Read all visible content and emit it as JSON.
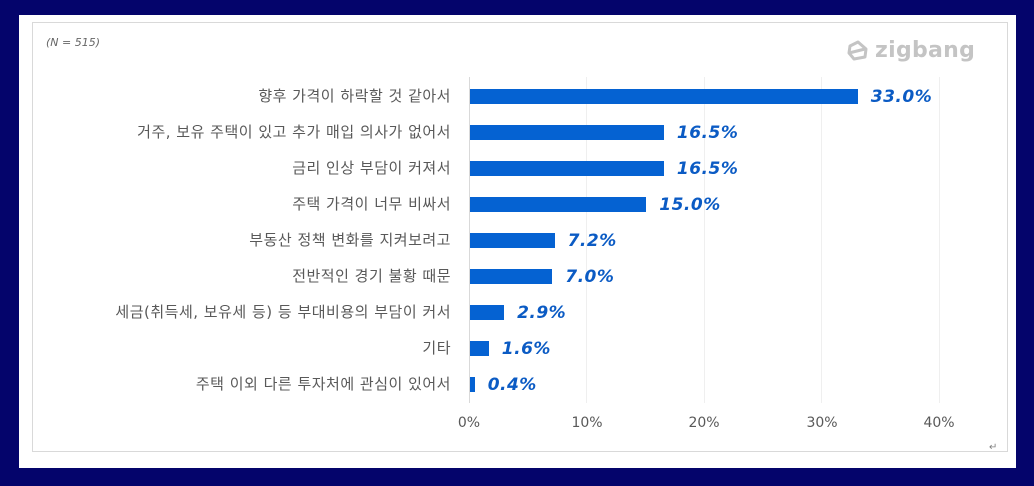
{
  "note": "(N = 515)",
  "brand": {
    "name": "zigbang",
    "color": "#c4c4c4"
  },
  "colors": {
    "bar": "#0562d2",
    "value_label": "#0b5bc4",
    "background_border": "#04046b"
  },
  "axis": {
    "ticks": [
      "0%",
      "10%",
      "20%",
      "30%",
      "40%"
    ]
  },
  "rows": [
    {
      "label": "향후 가격이 하락할 것 같아서",
      "value": 33.0,
      "display": "33.0%"
    },
    {
      "label": "거주, 보유 주택이 있고 추가 매입 의사가 없어서",
      "value": 16.5,
      "display": "16.5%"
    },
    {
      "label": "금리 인상 부담이 커져서",
      "value": 16.5,
      "display": "16.5%"
    },
    {
      "label": "주택 가격이 너무 비싸서",
      "value": 15.0,
      "display": "15.0%"
    },
    {
      "label": "부동산 정책 변화를 지켜보려고",
      "value": 7.2,
      "display": "7.2%"
    },
    {
      "label": "전반적인 경기 불황 때문",
      "value": 7.0,
      "display": "7.0%"
    },
    {
      "label": "세금(취득세, 보유세 등) 등 부대비용의 부담이 커서",
      "value": 2.9,
      "display": "2.9%"
    },
    {
      "label": "기타",
      "value": 1.6,
      "display": "1.6%"
    },
    {
      "label": "주택 이외 다른 투자처에 관심이 있어서",
      "value": 0.4,
      "display": "0.4%"
    }
  ],
  "return_mark": "↵",
  "chart_data": {
    "type": "bar",
    "orientation": "horizontal",
    "title": "",
    "subtitle": "(N = 515)",
    "categories": [
      "향후 가격이 하락할 것 같아서",
      "거주, 보유 주택이 있고 추가 매입 의사가 없어서",
      "금리 인상 부담이 커져서",
      "주택 가격이 너무 비싸서",
      "부동산 정책 변화를 지켜보려고",
      "전반적인 경기 불황 때문",
      "세금(취득세, 보유세 등) 등 부대비용의 부담이 커서",
      "기타",
      "주택 이외 다른 투자처에 관심이 있어서"
    ],
    "values": [
      33.0,
      16.5,
      16.5,
      15.0,
      7.2,
      7.0,
      2.9,
      1.6,
      0.4
    ],
    "data_labels": [
      "33.0%",
      "16.5%",
      "16.5%",
      "15.0%",
      "7.2%",
      "7.0%",
      "2.9%",
      "1.6%",
      "0.4%"
    ],
    "xlabel": "",
    "ylabel": "",
    "xlim": [
      0,
      40
    ],
    "xticks": [
      "0%",
      "10%",
      "20%",
      "30%",
      "40%"
    ],
    "grid": "vertical",
    "legend": "none",
    "annotations": [
      "zigbang"
    ]
  }
}
